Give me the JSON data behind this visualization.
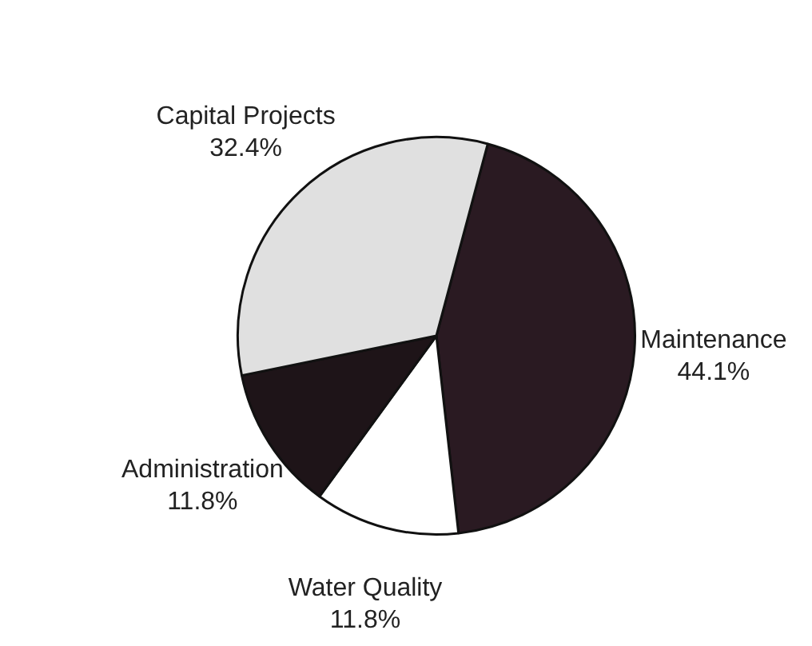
{
  "chart_data": {
    "type": "pie",
    "categories": [
      "Maintenance",
      "Water Quality",
      "Administration",
      "Capital Projects"
    ],
    "values": [
      44.1,
      11.8,
      11.8,
      32.4
    ],
    "colors": [
      "#2a1a22",
      "#ffffff",
      "#1e1418",
      "#e0e0e0"
    ],
    "value_labels": [
      "44.1%",
      "11.8%",
      "11.8%",
      "32.4%"
    ],
    "legend": false
  }
}
